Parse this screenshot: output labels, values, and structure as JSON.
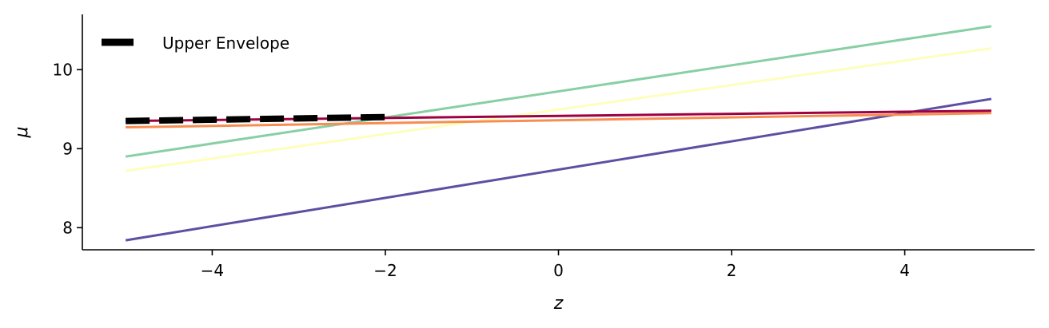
{
  "chart_data": {
    "type": "line",
    "title": "",
    "xlabel": "z",
    "ylabel": "μ",
    "xlim": [
      -5.5,
      5.5
    ],
    "ylim": [
      7.72,
      10.7
    ],
    "x_ticks": [
      -4,
      -2,
      0,
      2,
      4
    ],
    "x_tick_labels": [
      "−4",
      "−2",
      "0",
      "2",
      "4"
    ],
    "y_ticks": [
      8,
      9,
      10
    ],
    "y_tick_labels": [
      "8",
      "9",
      "10"
    ],
    "grid": false,
    "legend": {
      "placement": "top-left",
      "entries": [
        {
          "name": "Upper Envelope",
          "color": "#000000",
          "style": "dashed"
        }
      ]
    },
    "series": [
      {
        "color": "#5e4fa2",
        "x": [
          -5,
          5
        ],
        "y": [
          7.84,
          9.63
        ]
      },
      {
        "color": "#fefebd",
        "x": [
          -5,
          5
        ],
        "y": [
          8.72,
          10.27
        ]
      },
      {
        "color": "#88cfa4",
        "x": [
          -5,
          5
        ],
        "y": [
          8.9,
          10.55
        ]
      },
      {
        "color": "#f88d52",
        "x": [
          -5,
          5
        ],
        "y": [
          9.27,
          9.45
        ]
      },
      {
        "color": "#9e0142",
        "x": [
          -5,
          5
        ],
        "y": [
          9.35,
          9.48
        ]
      },
      {
        "name": "Upper Envelope",
        "color": "#000000",
        "dashed": true,
        "x": [
          -5,
          -2
        ],
        "y": [
          9.35,
          9.4
        ]
      }
    ]
  }
}
